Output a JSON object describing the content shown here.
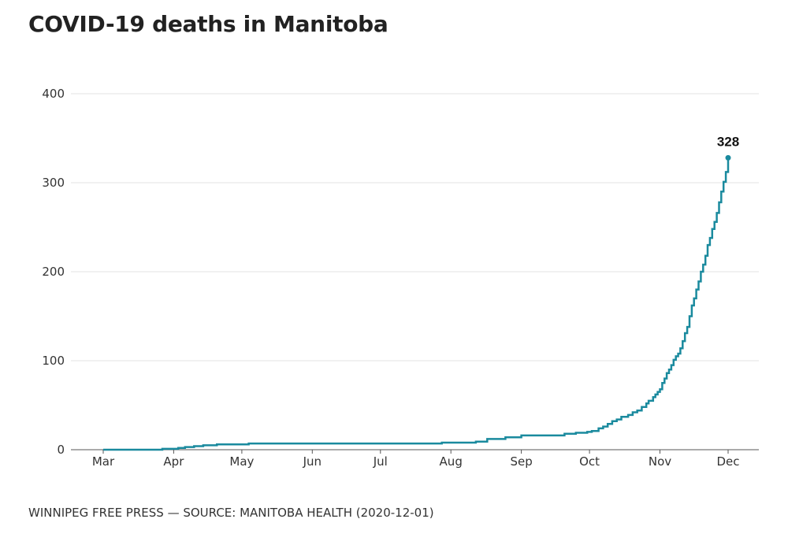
{
  "title": "COVID-19 deaths in Manitoba",
  "footer": "WINNIPEG FREE PRESS — SOURCE: MANITOBA HEALTH (2020-12-01)",
  "chart_data": {
    "type": "line",
    "step": true,
    "title": "COVID-19 deaths in Manitoba",
    "xlabel": "",
    "ylabel": "",
    "ylim": [
      0,
      400
    ],
    "yticks": [
      0,
      100,
      200,
      300,
      400
    ],
    "xlim": [
      "2020-03-01",
      "2020-12-01"
    ],
    "xticks": [
      {
        "date": "2020-03-01",
        "label": "Mar"
      },
      {
        "date": "2020-04-01",
        "label": "Apr"
      },
      {
        "date": "2020-05-01",
        "label": "May"
      },
      {
        "date": "2020-06-01",
        "label": "Jun"
      },
      {
        "date": "2020-07-01",
        "label": "Jul"
      },
      {
        "date": "2020-08-01",
        "label": "Aug"
      },
      {
        "date": "2020-09-01",
        "label": "Sep"
      },
      {
        "date": "2020-10-01",
        "label": "Oct"
      },
      {
        "date": "2020-11-01",
        "label": "Nov"
      },
      {
        "date": "2020-12-01",
        "label": "Dec"
      }
    ],
    "grid": true,
    "color": "#1a8a9e",
    "end_label": "328",
    "series": [
      {
        "points": [
          [
            "2020-03-01",
            0
          ],
          [
            "2020-03-27",
            1
          ],
          [
            "2020-04-03",
            2
          ],
          [
            "2020-04-06",
            3
          ],
          [
            "2020-04-10",
            4
          ],
          [
            "2020-04-14",
            5
          ],
          [
            "2020-04-20",
            6
          ],
          [
            "2020-05-04",
            7
          ],
          [
            "2020-07-28",
            8
          ],
          [
            "2020-08-12",
            9
          ],
          [
            "2020-08-17",
            12
          ],
          [
            "2020-08-25",
            14
          ],
          [
            "2020-09-01",
            16
          ],
          [
            "2020-09-20",
            18
          ],
          [
            "2020-09-25",
            19
          ],
          [
            "2020-09-30",
            20
          ],
          [
            "2020-10-02",
            21
          ],
          [
            "2020-10-05",
            24
          ],
          [
            "2020-10-07",
            26
          ],
          [
            "2020-10-09",
            29
          ],
          [
            "2020-10-11",
            32
          ],
          [
            "2020-10-13",
            34
          ],
          [
            "2020-10-15",
            37
          ],
          [
            "2020-10-18",
            39
          ],
          [
            "2020-10-20",
            42
          ],
          [
            "2020-10-22",
            44
          ],
          [
            "2020-10-24",
            48
          ],
          [
            "2020-10-26",
            52
          ],
          [
            "2020-10-27",
            55
          ],
          [
            "2020-10-29",
            59
          ],
          [
            "2020-10-30",
            62
          ],
          [
            "2020-10-31",
            65
          ],
          [
            "2020-11-01",
            68
          ],
          [
            "2020-11-02",
            75
          ],
          [
            "2020-11-03",
            80
          ],
          [
            "2020-11-04",
            86
          ],
          [
            "2020-11-05",
            90
          ],
          [
            "2020-11-06",
            95
          ],
          [
            "2020-11-07",
            101
          ],
          [
            "2020-11-08",
            105
          ],
          [
            "2020-11-09",
            108
          ],
          [
            "2020-11-10",
            114
          ],
          [
            "2020-11-11",
            122
          ],
          [
            "2020-11-12",
            131
          ],
          [
            "2020-11-13",
            138
          ],
          [
            "2020-11-14",
            150
          ],
          [
            "2020-11-15",
            162
          ],
          [
            "2020-11-16",
            170
          ],
          [
            "2020-11-17",
            180
          ],
          [
            "2020-11-18",
            189
          ],
          [
            "2020-11-19",
            200
          ],
          [
            "2020-11-20",
            208
          ],
          [
            "2020-11-21",
            218
          ],
          [
            "2020-11-22",
            230
          ],
          [
            "2020-11-23",
            238
          ],
          [
            "2020-11-24",
            248
          ],
          [
            "2020-11-25",
            256
          ],
          [
            "2020-11-26",
            266
          ],
          [
            "2020-11-27",
            278
          ],
          [
            "2020-11-28",
            290
          ],
          [
            "2020-11-29",
            301
          ],
          [
            "2020-11-30",
            312
          ],
          [
            "2020-12-01",
            328
          ]
        ]
      }
    ]
  }
}
